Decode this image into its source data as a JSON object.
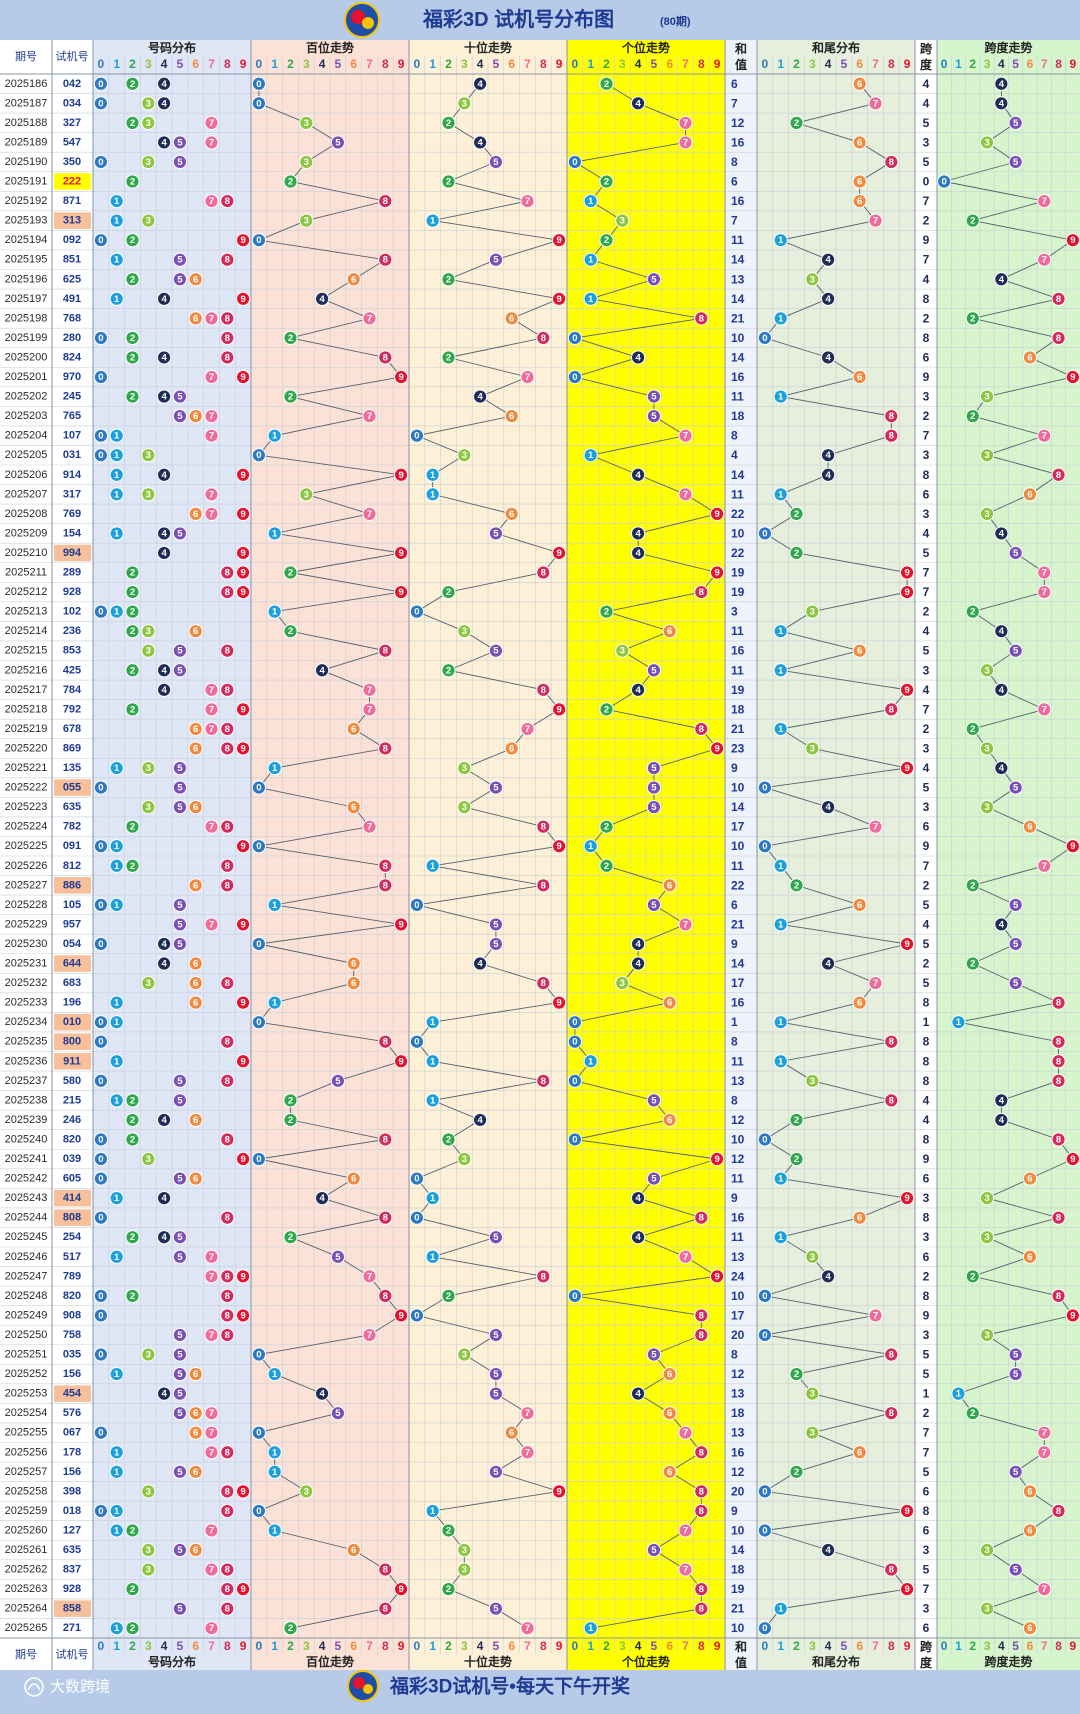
{
  "header": {
    "title": "福彩3D 试机号分布图",
    "subtitle": "(80期)"
  },
  "footer": {
    "slogan": "福彩3D试机号•每天下午开奖",
    "brand": "大数跨境"
  },
  "columns": {
    "issue": "期号",
    "trial": "试机号",
    "distribution": "号码分布",
    "hundreds": "百位走势",
    "tens": "十位走势",
    "units": "个位走势",
    "sum_top": "和",
    "sum_bottom": "值",
    "sum_tail": "和尾分布",
    "span_top": "跨",
    "span_bottom": "度",
    "span_trend": "跨度走势",
    "digits": [
      "0",
      "1",
      "2",
      "3",
      "4",
      "5",
      "6",
      "7",
      "8",
      "9"
    ]
  },
  "colors": {
    "title_bar": "#b7cbe9",
    "title_text": "#1f3a93",
    "distribution_bg": "#dfe6f6",
    "hundreds_bg": "#fbe1d6",
    "tens_bg": "#fdf0d6",
    "units_bg": "#ffff00",
    "sum_tail_bg": "#e6eedc",
    "span_bg": "#d6f5cc",
    "highlight_trial": "#f7c09b",
    "highlight_triple": "#ffff00",
    "digit_colors": [
      "#2b78c5",
      "#1ba0de",
      "#2ea84a",
      "#8dc63f",
      "#1f2c56",
      "#7a4fb5",
      "#f08a3e",
      "#ef6c9a",
      "#d42a5a",
      "#e8112d"
    ]
  },
  "chart_data": {
    "type": "table",
    "title": "福彩3D 试机号分布图",
    "period_count": 80,
    "issues": [
      "2025186",
      "2025187",
      "2025188",
      "2025189",
      "2025190",
      "2025191",
      "2025192",
      "2025193",
      "2025194",
      "2025195",
      "2025196",
      "2025197",
      "2025198",
      "2025199",
      "2025200",
      "2025201",
      "2025202",
      "2025203",
      "2025204",
      "2025205",
      "2025206",
      "2025207",
      "2025208",
      "2025209",
      "2025210",
      "2025211",
      "2025212",
      "2025213",
      "2025214",
      "2025215",
      "2025216",
      "2025217",
      "2025218",
      "2025219",
      "2025220",
      "2025221",
      "2025222",
      "2025223",
      "2025224",
      "2025225",
      "2025226",
      "2025227",
      "2025228",
      "2025229",
      "2025230",
      "2025231",
      "2025232",
      "2025233",
      "2025234",
      "2025235",
      "2025236",
      "2025237",
      "2025238",
      "2025239",
      "2025240",
      "2025241",
      "2025242",
      "2025243",
      "2025244",
      "2025245",
      "2025246",
      "2025247",
      "2025248",
      "2025249",
      "2025250",
      "2025251",
      "2025252",
      "2025253",
      "2025254",
      "2025255",
      "2025256",
      "2025257",
      "2025258",
      "2025259",
      "2025260",
      "2025261",
      "2025262",
      "2025263",
      "2025264",
      "2025265"
    ],
    "trial_numbers": [
      "042",
      "034",
      "327",
      "547",
      "350",
      "222",
      "871",
      "313",
      "092",
      "851",
      "625",
      "491",
      "768",
      "280",
      "824",
      "970",
      "245",
      "765",
      "107",
      "031",
      "914",
      "317",
      "769",
      "154",
      "994",
      "289",
      "928",
      "102",
      "236",
      "853",
      "425",
      "784",
      "792",
      "678",
      "869",
      "135",
      "055",
      "635",
      "782",
      "091",
      "812",
      "886",
      "105",
      "957",
      "054",
      "644",
      "683",
      "196",
      "010",
      "800",
      "911",
      "580",
      "215",
      "246",
      "820",
      "039",
      "605",
      "414",
      "808",
      "254",
      "517",
      "789",
      "820",
      "908",
      "758",
      "035",
      "156",
      "454",
      "576",
      "067",
      "178",
      "156",
      "398",
      "018",
      "127",
      "635",
      "837",
      "928",
      "858",
      "271"
    ]
  }
}
